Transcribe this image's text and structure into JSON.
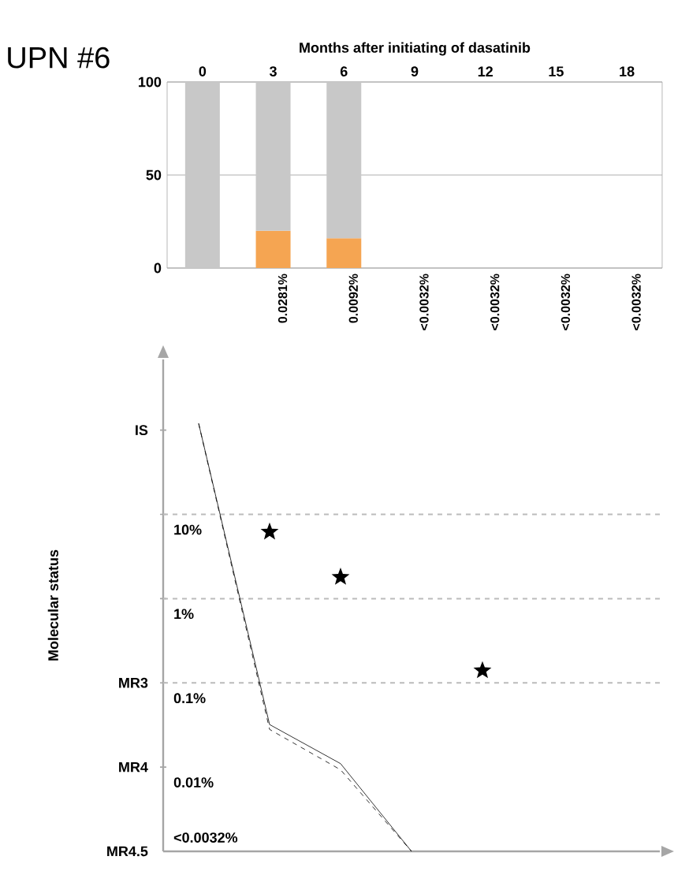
{
  "chart_data": [
    {
      "type": "bar",
      "title": "UPN #6",
      "xlabel": "Months after initiating of dasatinib",
      "categories": [
        "0",
        "3",
        "6",
        "9",
        "12",
        "15",
        "18"
      ],
      "stacked": true,
      "series": [
        {
          "color": "#f5a552",
          "values": [
            null,
            20,
            16,
            null,
            null,
            null,
            null
          ]
        },
        {
          "color": "#c8c8c8",
          "values": [
            100,
            80,
            84,
            null,
            null,
            null,
            null
          ]
        }
      ],
      "ylim": [
        0,
        100
      ],
      "yticks": [
        0,
        50,
        100
      ],
      "grid": "y",
      "annotations": [
        "0.0281%",
        "0.0092%",
        "<0.0032%",
        "<0.0032%",
        "<0.0032%",
        "<0.0032%"
      ]
    },
    {
      "type": "line",
      "ylabel": "Molecular status",
      "grid": false,
      "tick_labels": "y",
      "log": "y",
      "categories": [
        "0",
        "3",
        "6",
        "9",
        "12",
        "15",
        "18"
      ],
      "series": [
        {
          "color": "#000000",
          "line_style": "solid",
          "marker": "none",
          "values": [
            120,
            0.032,
            0.011,
            0.001,
            null,
            null,
            null
          ]
        },
        {
          "color": "#000000",
          "line_style": "dashed",
          "marker": "none",
          "values": [
            120,
            0.028,
            0.0093,
            0.001,
            null,
            null,
            null
          ]
        },
        {
          "type": "scatter",
          "color": "#000000",
          "marker": "star",
          "values": [
            null,
            6.2,
            1.8,
            null,
            0.14,
            null,
            null
          ]
        }
      ],
      "ylim": [
        0.001,
        690
      ],
      "yticks": [
        {
          "value": 100,
          "label": null
        },
        {
          "value": 10,
          "label": "10%"
        },
        {
          "value": 1,
          "label": "1%"
        },
        {
          "value": 0.1,
          "label": "0.1%"
        },
        {
          "value": 0.01,
          "label": "0.01%"
        }
      ],
      "ref_lines": [
        {
          "axis": "y",
          "value": 10,
          "color": "#bbbbbb",
          "line_style": "dashed"
        },
        {
          "axis": "y",
          "value": 1,
          "color": "#bbbbbb",
          "line_style": "dashed"
        },
        {
          "axis": "y",
          "value": 0.1,
          "color": "#bbbbbb",
          "line_style": "dashed"
        }
      ],
      "annotations": [
        "IS",
        "MR3",
        "MR4",
        "MR4.5",
        "<0.0032%"
      ]
    }
  ]
}
